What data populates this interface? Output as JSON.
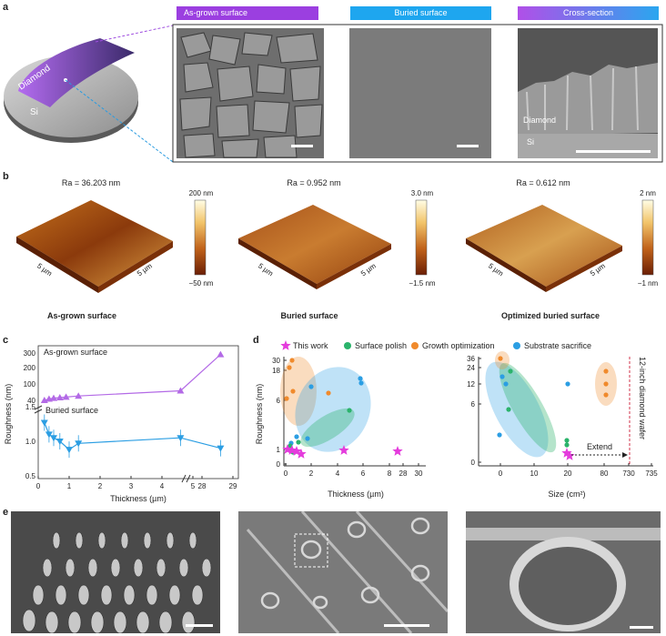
{
  "panels": {
    "a": "a",
    "b": "b",
    "c": "c",
    "d": "d",
    "e": "e"
  },
  "panel_a": {
    "wafer_diamond": "Diamond",
    "wafer_si": "Si",
    "tag_asgrown": "As-grown surface",
    "tag_buried": "Buried surface",
    "tag_cross": "Cross-section",
    "cross_diamond": "Diamond",
    "cross_si": "Si",
    "colors": {
      "purple": "#9b3fe0",
      "blue": "#1ea6ef"
    }
  },
  "panel_b": {
    "maps": [
      {
        "ra": "Ra = 36.203 nm",
        "cbar_top": "200 nm",
        "cbar_bottom": "−50 nm",
        "axis_left": "5 µm",
        "axis_right": "5 µm",
        "caption": "As-grown surface"
      },
      {
        "ra": "Ra = 0.952 nm",
        "cbar_top": "3.0 nm",
        "cbar_bottom": "−1.5 nm",
        "axis_left": "5 µm",
        "axis_right": "5 µm",
        "caption": "Buried surface"
      },
      {
        "ra": "Ra = 0.612 nm",
        "cbar_top": "2 nm",
        "cbar_bottom": "−1 nm",
        "axis_left": "5 µm",
        "axis_right": "5 µm",
        "caption": "Optimized buried surface"
      }
    ]
  },
  "chart_data": [
    {
      "type": "line",
      "panel": "c",
      "xlabel": "Thickness (µm)",
      "ylabel": "Roughness (nm)",
      "x_ticks": [
        "0",
        "1",
        "2",
        "3",
        "4",
        "5",
        "28",
        "29"
      ],
      "y_ticks_top": [
        "300",
        "200",
        "100",
        "40"
      ],
      "y_ticks_bottom": [
        "1.5",
        "1.0",
        "0.5"
      ],
      "annotations": [
        "As-grown surface",
        "Buried surface"
      ],
      "series": [
        {
          "name": "As-grown surface",
          "color": "#b36ae6",
          "x": [
            0.2,
            0.35,
            0.5,
            0.7,
            0.9,
            1.3,
            4.6,
            28.6
          ],
          "y": [
            40,
            45,
            48,
            50,
            52,
            56,
            75,
            290
          ]
        },
        {
          "name": "Buried surface",
          "color": "#2b9ee3",
          "x": [
            0.2,
            0.35,
            0.5,
            0.7,
            1.0,
            1.3,
            4.6,
            28.6
          ],
          "y": [
            1.27,
            1.1,
            1.05,
            1.0,
            0.88,
            0.97,
            1.05,
            0.9
          ]
        }
      ]
    },
    {
      "type": "scatter",
      "panel": "d",
      "legend": [
        "This work",
        "Surface polish",
        "Growth optimization",
        "Substrate sacrifice"
      ],
      "legend_colors": [
        "#e43cdc",
        "#2bb36b",
        "#f08a2c",
        "#2b9ee3"
      ],
      "left": {
        "xlabel": "Thickness (µm)",
        "ylabel": "Roughness (nm)",
        "x_ticks": [
          "0",
          "2",
          "4",
          "6",
          "8",
          "28",
          "30"
        ],
        "y_ticks": [
          "30",
          "18",
          "6",
          "1",
          "0"
        ]
      },
      "right": {
        "xlabel": "Size (cm²)",
        "x_ticks": [
          "0",
          "10",
          "20",
          "80",
          "730",
          "735"
        ],
        "y_ticks": [
          "36",
          "24",
          "12",
          "6",
          "0"
        ],
        "extend_label": "Extend",
        "wafer_label": "12-inch diamond wafer"
      }
    }
  ],
  "panel_e": {
    "images": 3
  }
}
